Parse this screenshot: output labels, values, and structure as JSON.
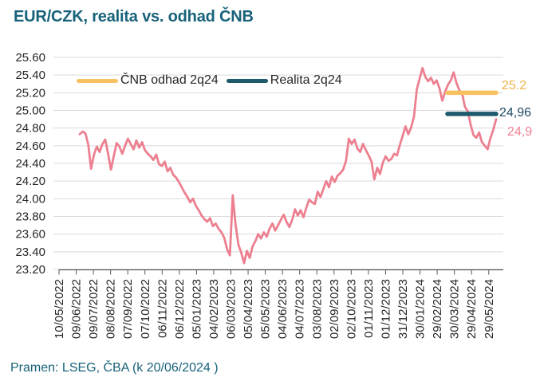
{
  "title": "EUR/CZK, realita vs. odhad ČNB",
  "source": "Pramen: LSEG, ČBA (k 20/06/2024 )",
  "legend": {
    "items": [
      {
        "label": "ČNB odhad 2q24",
        "color": "#F8C15F"
      },
      {
        "label": "Realita 2q24",
        "color": "#1E5A6C"
      }
    ]
  },
  "annotations": {
    "forecast_value": "25.2",
    "reality_value": "24,96",
    "last_value": "24,9"
  },
  "colors": {
    "title_text": "#17627A",
    "source_text": "#17627A",
    "axis_text": "#262626",
    "gridline": "#D9D9D9",
    "axis_line": "#595959",
    "series_line": "#EC8090",
    "forecast_line": "#F8C15F",
    "forecast_label": "#F0B44C",
    "reality_line": "#1E5A6C",
    "reality_label": "#1F4A63",
    "last_label": "#ED8091"
  },
  "chart_data": {
    "type": "line",
    "title": "EUR/CZK, realita vs. odhad ČNB",
    "xlabel": "",
    "ylabel": "",
    "ylim": [
      23.2,
      25.6
    ],
    "grid": "horizontal",
    "legend_position": "top-left-inside",
    "y_ticks": [
      "25.60",
      "25.40",
      "25.20",
      "25.00",
      "24.80",
      "24.60",
      "24.40",
      "24.20",
      "24.00",
      "23.80",
      "23.60",
      "23.40",
      "23.20"
    ],
    "x_ticks": [
      "10/05/2022",
      "09/06/2022",
      "09/07/2022",
      "08/08/2022",
      "07/09/2022",
      "07/10/2022",
      "06/11/2022",
      "06/12/2022",
      "05/01/2023",
      "04/02/2023",
      "06/03/2023",
      "05/04/2023",
      "05/05/2023",
      "04/06/2023",
      "04/07/2023",
      "03/08/2023",
      "02/09/2023",
      "02/10/2023",
      "01/11/2023",
      "01/12/2023",
      "31/12/2023",
      "30/01/2024",
      "29/02/2024",
      "30/03/2024",
      "29/04/2024",
      "29/05/2024"
    ],
    "series": [
      {
        "name": "EUR/CZK realita",
        "color": "#EC8090",
        "end_annotation": "24,9",
        "values": [
          24.73,
          24.76,
          24.74,
          24.61,
          24.34,
          24.5,
          24.59,
          24.53,
          24.62,
          24.67,
          24.51,
          24.33,
          24.48,
          24.63,
          24.59,
          24.51,
          24.6,
          24.68,
          24.62,
          24.56,
          24.66,
          24.58,
          24.64,
          24.55,
          24.51,
          24.48,
          24.44,
          24.5,
          24.39,
          24.37,
          24.42,
          24.31,
          24.35,
          24.27,
          24.24,
          24.19,
          24.13,
          24.07,
          24.02,
          23.96,
          24.0,
          23.92,
          23.87,
          23.81,
          23.77,
          23.74,
          23.78,
          23.69,
          23.72,
          23.66,
          23.62,
          23.56,
          23.43,
          23.36,
          24.04,
          23.71,
          23.48,
          23.39,
          23.27,
          23.41,
          23.33,
          23.46,
          23.52,
          23.6,
          23.55,
          23.62,
          23.57,
          23.66,
          23.72,
          23.64,
          23.7,
          23.76,
          23.82,
          23.74,
          23.68,
          23.76,
          23.88,
          23.81,
          23.87,
          23.79,
          23.9,
          23.99,
          23.96,
          23.94,
          24.08,
          24.02,
          24.11,
          24.2,
          24.13,
          24.25,
          24.19,
          24.26,
          24.29,
          24.33,
          24.43,
          24.68,
          24.62,
          24.67,
          24.57,
          24.53,
          24.62,
          24.55,
          24.49,
          24.42,
          24.22,
          24.35,
          24.28,
          24.41,
          24.48,
          24.43,
          24.45,
          24.51,
          24.49,
          24.61,
          24.71,
          24.82,
          24.73,
          24.81,
          24.93,
          25.24,
          25.36,
          25.48,
          25.38,
          25.33,
          25.37,
          25.3,
          25.34,
          25.25,
          25.11,
          25.21,
          25.29,
          25.34,
          25.43,
          25.31,
          25.23,
          25.19,
          25.04,
          24.99,
          24.84,
          24.72,
          24.69,
          24.75,
          24.64,
          24.6,
          24.56,
          24.69,
          24.78,
          24.9
        ]
      },
      {
        "name": "ČNB odhad 2q24",
        "color": "#F8C15F",
        "segment_value": 25.2,
        "annotation": "25.2"
      },
      {
        "name": "Realita 2q24",
        "color": "#1E5A6C",
        "segment_value": 24.96,
        "annotation": "24,96"
      }
    ]
  }
}
